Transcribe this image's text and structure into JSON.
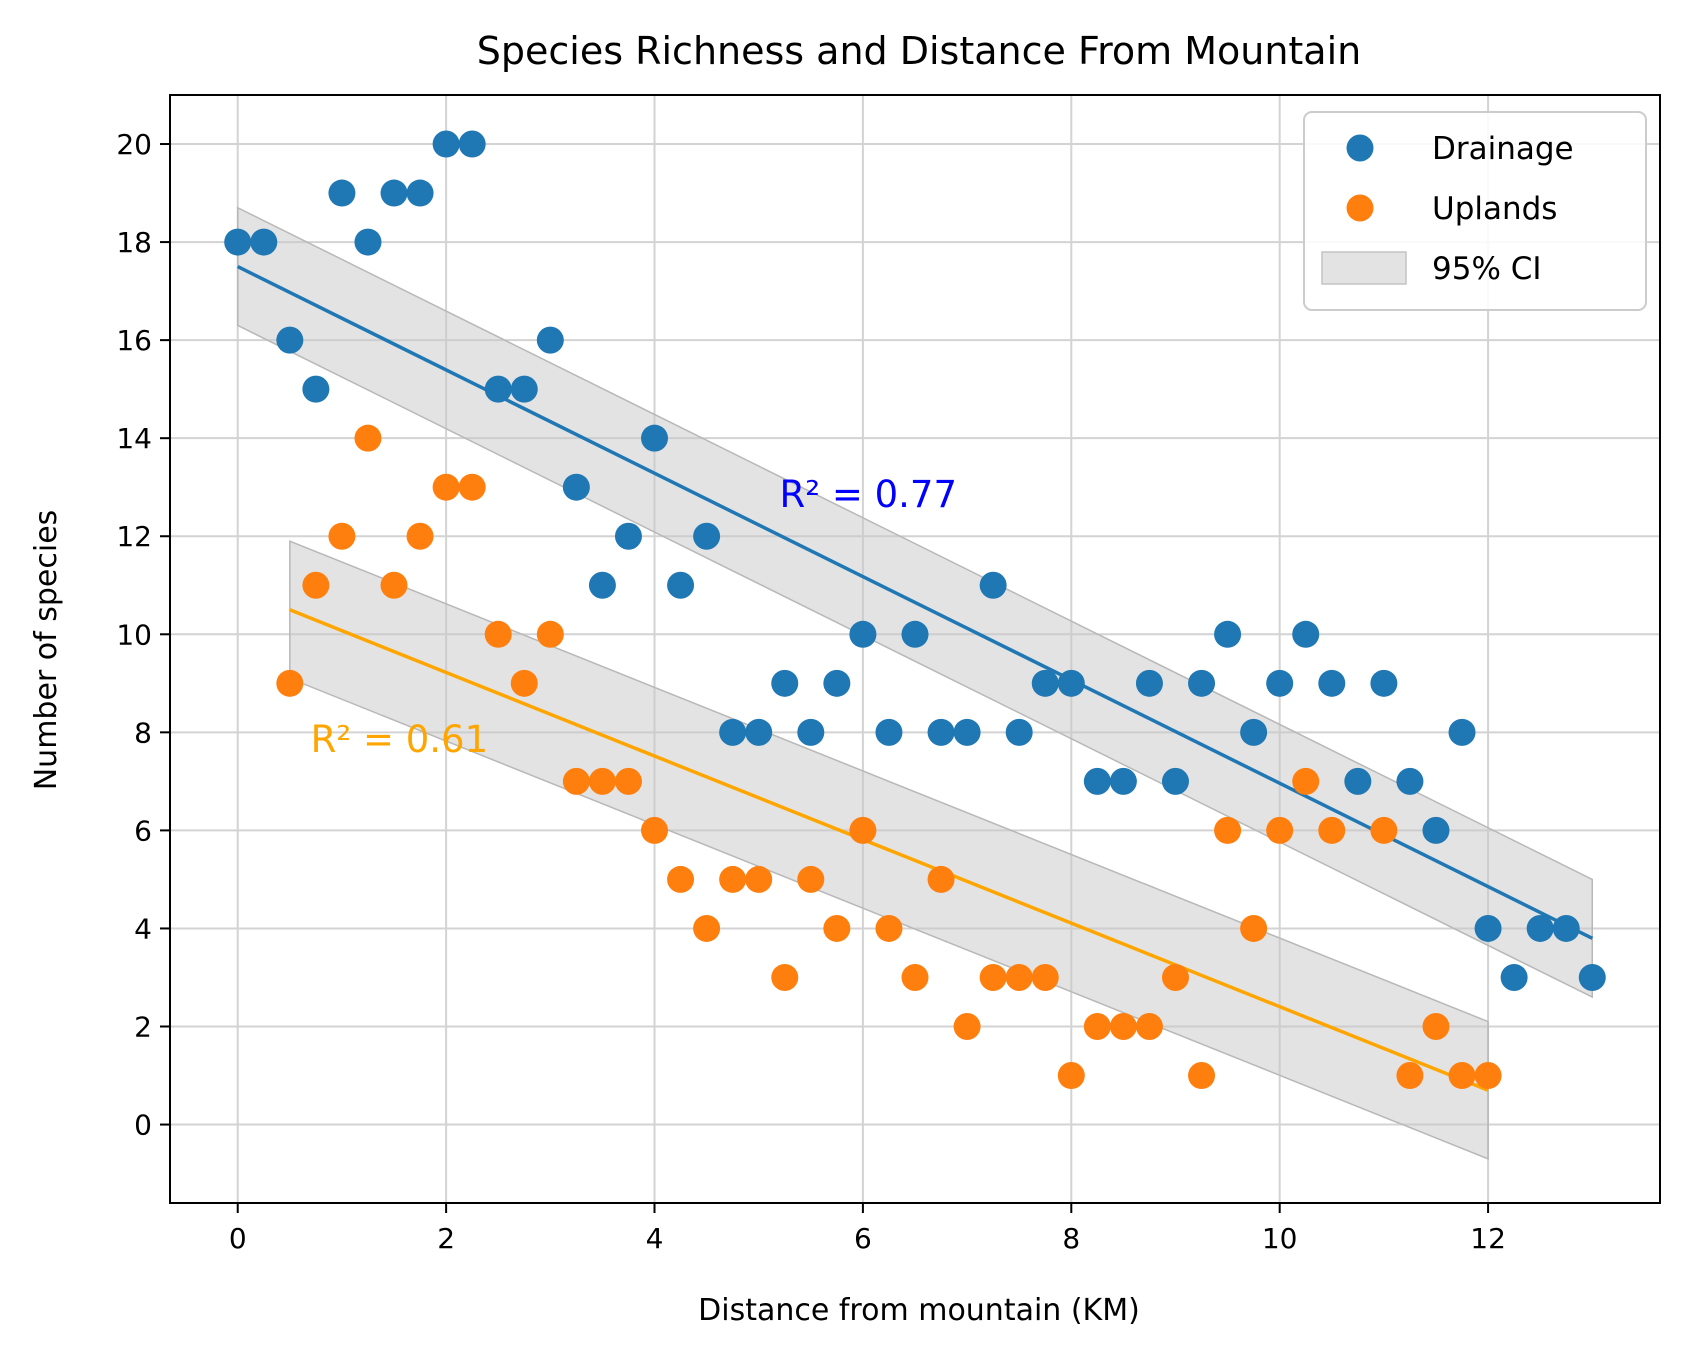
{
  "chart_data": {
    "type": "scatter",
    "title": "Species Richness and Distance From Mountain",
    "xlabel": "Distance from mountain (KM)",
    "ylabel": "Number of species",
    "xlim": [
      -0.65,
      13.65
    ],
    "ylim": [
      -1.6,
      21.0
    ],
    "xticks": [
      0,
      2,
      4,
      6,
      8,
      10,
      12
    ],
    "yticks": [
      0,
      2,
      4,
      6,
      8,
      10,
      12,
      14,
      16,
      18,
      20
    ],
    "grid": true,
    "legend_position": "top-right",
    "legend": [
      {
        "label": "Drainage",
        "kind": "marker",
        "color": "#1f77b4"
      },
      {
        "label": "Uplands",
        "kind": "marker",
        "color": "#ff7f0e"
      },
      {
        "label": "95% CI",
        "kind": "patch",
        "color": "#d9d9d9"
      }
    ],
    "series": [
      {
        "name": "Drainage",
        "color": "#1f77b4",
        "x": [
          0,
          0.25,
          0.5,
          0.75,
          1,
          1.25,
          1.5,
          1.75,
          2,
          2.25,
          2.5,
          2.75,
          3,
          3.25,
          3.5,
          3.75,
          4,
          4.25,
          4.5,
          4.75,
          5,
          5.25,
          5.5,
          5.75,
          6,
          6.25,
          6.5,
          6.75,
          7,
          7.25,
          7.5,
          7.75,
          8,
          8.25,
          8.5,
          8.75,
          9,
          9.25,
          9.5,
          9.75,
          10,
          10.25,
          10.5,
          10.75,
          11,
          11.25,
          11.5,
          11.75,
          12,
          12.25,
          12.5,
          12.75,
          13
        ],
        "y": [
          18,
          18,
          16,
          15,
          19,
          18,
          19,
          19,
          20,
          20,
          15,
          15,
          16,
          13,
          11,
          12,
          14,
          11,
          12,
          8,
          8,
          9,
          8,
          9,
          10,
          8,
          10,
          8,
          8,
          11,
          8,
          9,
          9,
          7,
          7,
          9,
          7,
          9,
          10,
          8,
          9,
          10,
          9,
          7,
          9,
          7,
          6,
          8,
          4,
          3,
          4,
          4,
          3
        ],
        "fit": {
          "x": [
            0,
            13
          ],
          "y": [
            17.5,
            3.8
          ],
          "color": "#1f77b4"
        },
        "ci": {
          "x": [
            0,
            13
          ],
          "lower": [
            16.3,
            2.6
          ],
          "upper": [
            18.7,
            5.0
          ]
        },
        "r2_label": "R² = 0.77",
        "r2_color": "#0000ff",
        "r2_pos": [
          5.2,
          12.6
        ]
      },
      {
        "name": "Uplands",
        "color": "#ff7f0e",
        "x": [
          0.5,
          0.75,
          1,
          1.25,
          1.5,
          1.75,
          2,
          2.25,
          2.5,
          2.75,
          3,
          3.25,
          3.5,
          3.75,
          4,
          4.25,
          4.5,
          4.75,
          5,
          5.25,
          5.5,
          5.75,
          6,
          6.25,
          6.5,
          6.75,
          7,
          7.25,
          7.5,
          7.75,
          8,
          8.25,
          8.5,
          8.75,
          9,
          9.25,
          9.5,
          9.75,
          10,
          10.25,
          10.5,
          11,
          11.25,
          11.5,
          11.75,
          12
        ],
        "y": [
          9,
          11,
          12,
          14,
          11,
          12,
          13,
          13,
          10,
          9,
          10,
          7,
          7,
          7,
          6,
          5,
          4,
          5,
          5,
          3,
          5,
          4,
          6,
          4,
          3,
          5,
          2,
          3,
          3,
          3,
          1,
          2,
          2,
          2,
          3,
          1,
          6,
          4,
          6,
          7,
          6,
          6,
          1,
          2,
          1,
          1
        ],
        "fit": {
          "x": [
            0.5,
            12
          ],
          "y": [
            10.5,
            0.7
          ],
          "color": "#ffa500"
        },
        "ci": {
          "x": [
            0.5,
            12
          ],
          "lower": [
            9.1,
            -0.7
          ],
          "upper": [
            11.9,
            2.1
          ]
        },
        "r2_label": "R² = 0.61",
        "r2_color": "#ffa500",
        "r2_pos": [
          0.7,
          7.6
        ]
      }
    ]
  }
}
